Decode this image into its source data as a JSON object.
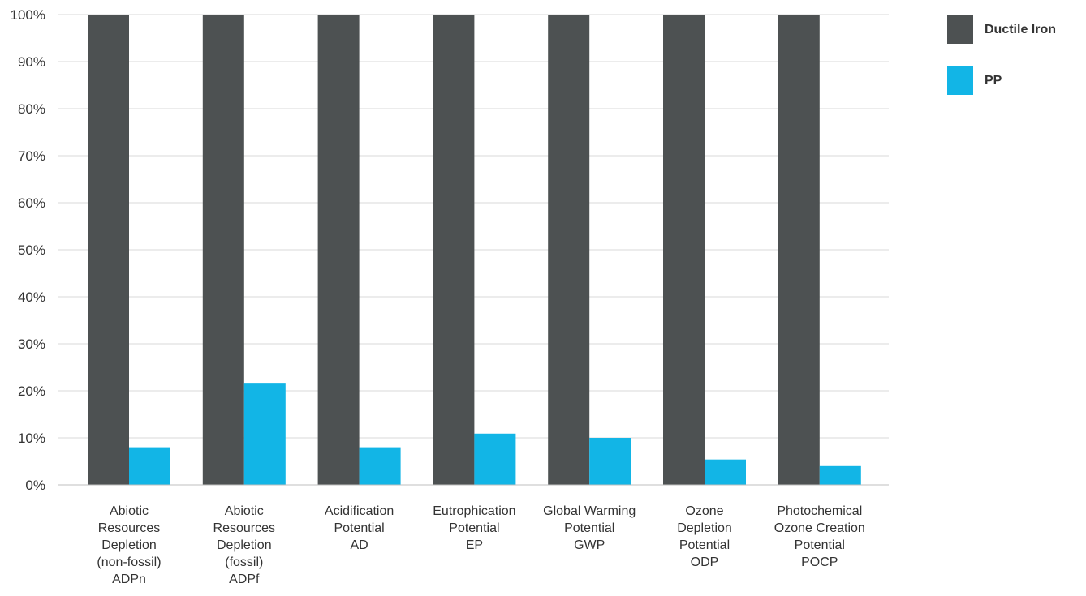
{
  "chart_data": {
    "type": "bar",
    "categories": [
      [
        "Abiotic",
        "Resources",
        "Depletion",
        "(non-fossil)",
        "ADPn"
      ],
      [
        "Abiotic",
        "Resources",
        "Depletion",
        "(fossil)",
        "ADPf"
      ],
      [
        "Acidification",
        "Potential",
        "AD"
      ],
      [
        "Eutrophication",
        "Potential",
        "EP"
      ],
      [
        "Global Warming",
        "Potential",
        "GWP"
      ],
      [
        "Ozone",
        "Depletion",
        "Potential",
        "ODP"
      ],
      [
        "Photochemical",
        "Ozone Creation",
        "Potential",
        "POCP"
      ]
    ],
    "series": [
      {
        "name": "Ductile Iron",
        "color": "#4d5152",
        "values": [
          100,
          100,
          100,
          100,
          100,
          100,
          100
        ]
      },
      {
        "name": "PP",
        "color": "#12b5e6",
        "values": [
          8,
          21.7,
          8,
          10.9,
          10,
          5.4,
          4
        ]
      }
    ],
    "y_ticks": [
      "0%",
      "10%",
      "20%",
      "30%",
      "40%",
      "50%",
      "60%",
      "70%",
      "80%",
      "90%",
      "100%"
    ],
    "ylim": [
      0,
      100
    ],
    "grid": true,
    "legend_position": "top-right",
    "title": "",
    "xlabel": "",
    "ylabel": ""
  }
}
